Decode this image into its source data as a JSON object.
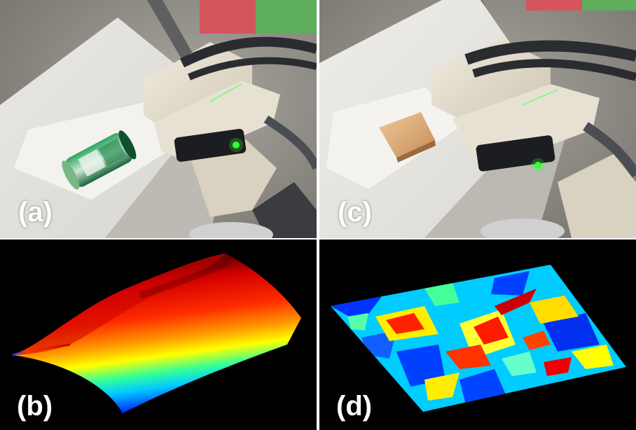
{
  "panels": [
    {
      "label": "(a)"
    },
    {
      "label": "(b)"
    },
    {
      "label": "(c)"
    },
    {
      "label": "(d)"
    }
  ],
  "colors": {
    "floor": "#8a8780",
    "paper": "#eceae4",
    "mat_red": "#d4555c",
    "mat_green": "#5fae5b",
    "sensor_body": "#e7e1d3",
    "cable": "#2a2c30",
    "led": "#33ff33",
    "can_green": "#1f8a4e",
    "wood_block": "#d9a773"
  }
}
